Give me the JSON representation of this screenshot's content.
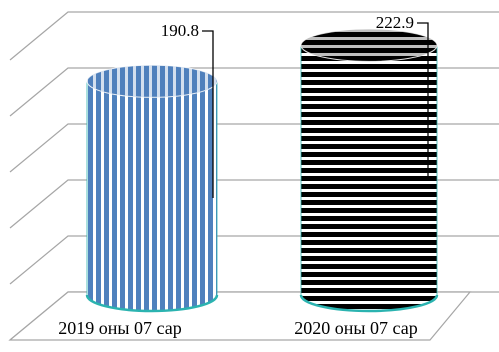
{
  "chart_data": {
    "type": "bar",
    "categories": [
      "2019 оны 07 сар",
      "2020 оны 07 сар"
    ],
    "values": [
      190.8,
      222.9
    ],
    "data_labels": [
      "190.8",
      "222.9"
    ],
    "title": "",
    "xlabel": "",
    "ylabel": "",
    "ylim": [
      0,
      250
    ],
    "grid": true,
    "legend": "none",
    "style": "3d-cylinder",
    "colors": {
      "series_2019_fill": "#4f81bd",
      "series_2019_stripe": "#ffffff",
      "series_2020_fill": "#000000",
      "series_2020_stripe": "#ffffff",
      "base_edge": "#2bb3b0",
      "grid": "#a6a6a6"
    }
  }
}
